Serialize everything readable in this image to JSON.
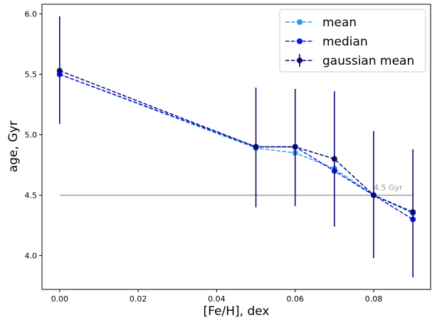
{
  "chart_data": {
    "type": "line",
    "xlabel": "[Fe/H], dex",
    "ylabel": "age, Gyr",
    "xlim": [
      -0.0045,
      0.0945
    ],
    "ylim": [
      3.72,
      6.08
    ],
    "xticks": [
      0.0,
      0.02,
      0.04,
      0.06,
      0.08
    ],
    "xtick_labels": [
      "0.00",
      "0.02",
      "0.04",
      "0.06",
      "0.08"
    ],
    "yticks": [
      4.0,
      4.5,
      5.0,
      5.5,
      6.0
    ],
    "ytick_labels": [
      "4.0",
      "4.5",
      "5.0",
      "5.5",
      "6.0"
    ],
    "grid": false,
    "legend_position": "top-right",
    "x": [
      0.0,
      0.05,
      0.06,
      0.07,
      0.08,
      0.09
    ],
    "series": [
      {
        "name": "mean",
        "color": "#2e9ae6",
        "style": "dashed-with-circle-markers",
        "values": [
          5.5,
          4.89,
          4.85,
          4.72,
          4.5,
          4.35
        ]
      },
      {
        "name": "median",
        "color": "#1111ee",
        "style": "dashed-with-circle-markers",
        "values": [
          5.5,
          4.9,
          4.9,
          4.7,
          4.5,
          4.3
        ]
      },
      {
        "name": "gaussian mean",
        "color": "#0a0a6e",
        "style": "dashed-with-circle-markers-and-errorbars",
        "values": [
          5.53,
          4.9,
          4.9,
          4.8,
          4.5,
          4.36
        ],
        "error_low": [
          5.09,
          4.4,
          4.41,
          4.24,
          3.98,
          3.82
        ],
        "error_high": [
          5.98,
          5.39,
          5.38,
          5.36,
          5.03,
          4.88
        ]
      }
    ],
    "reference_line": {
      "y": 4.5,
      "x_range": [
        0.0,
        0.09
      ],
      "color": "#a0a0a0",
      "label": "4.5 Gyr",
      "label_x": 0.08
    }
  }
}
